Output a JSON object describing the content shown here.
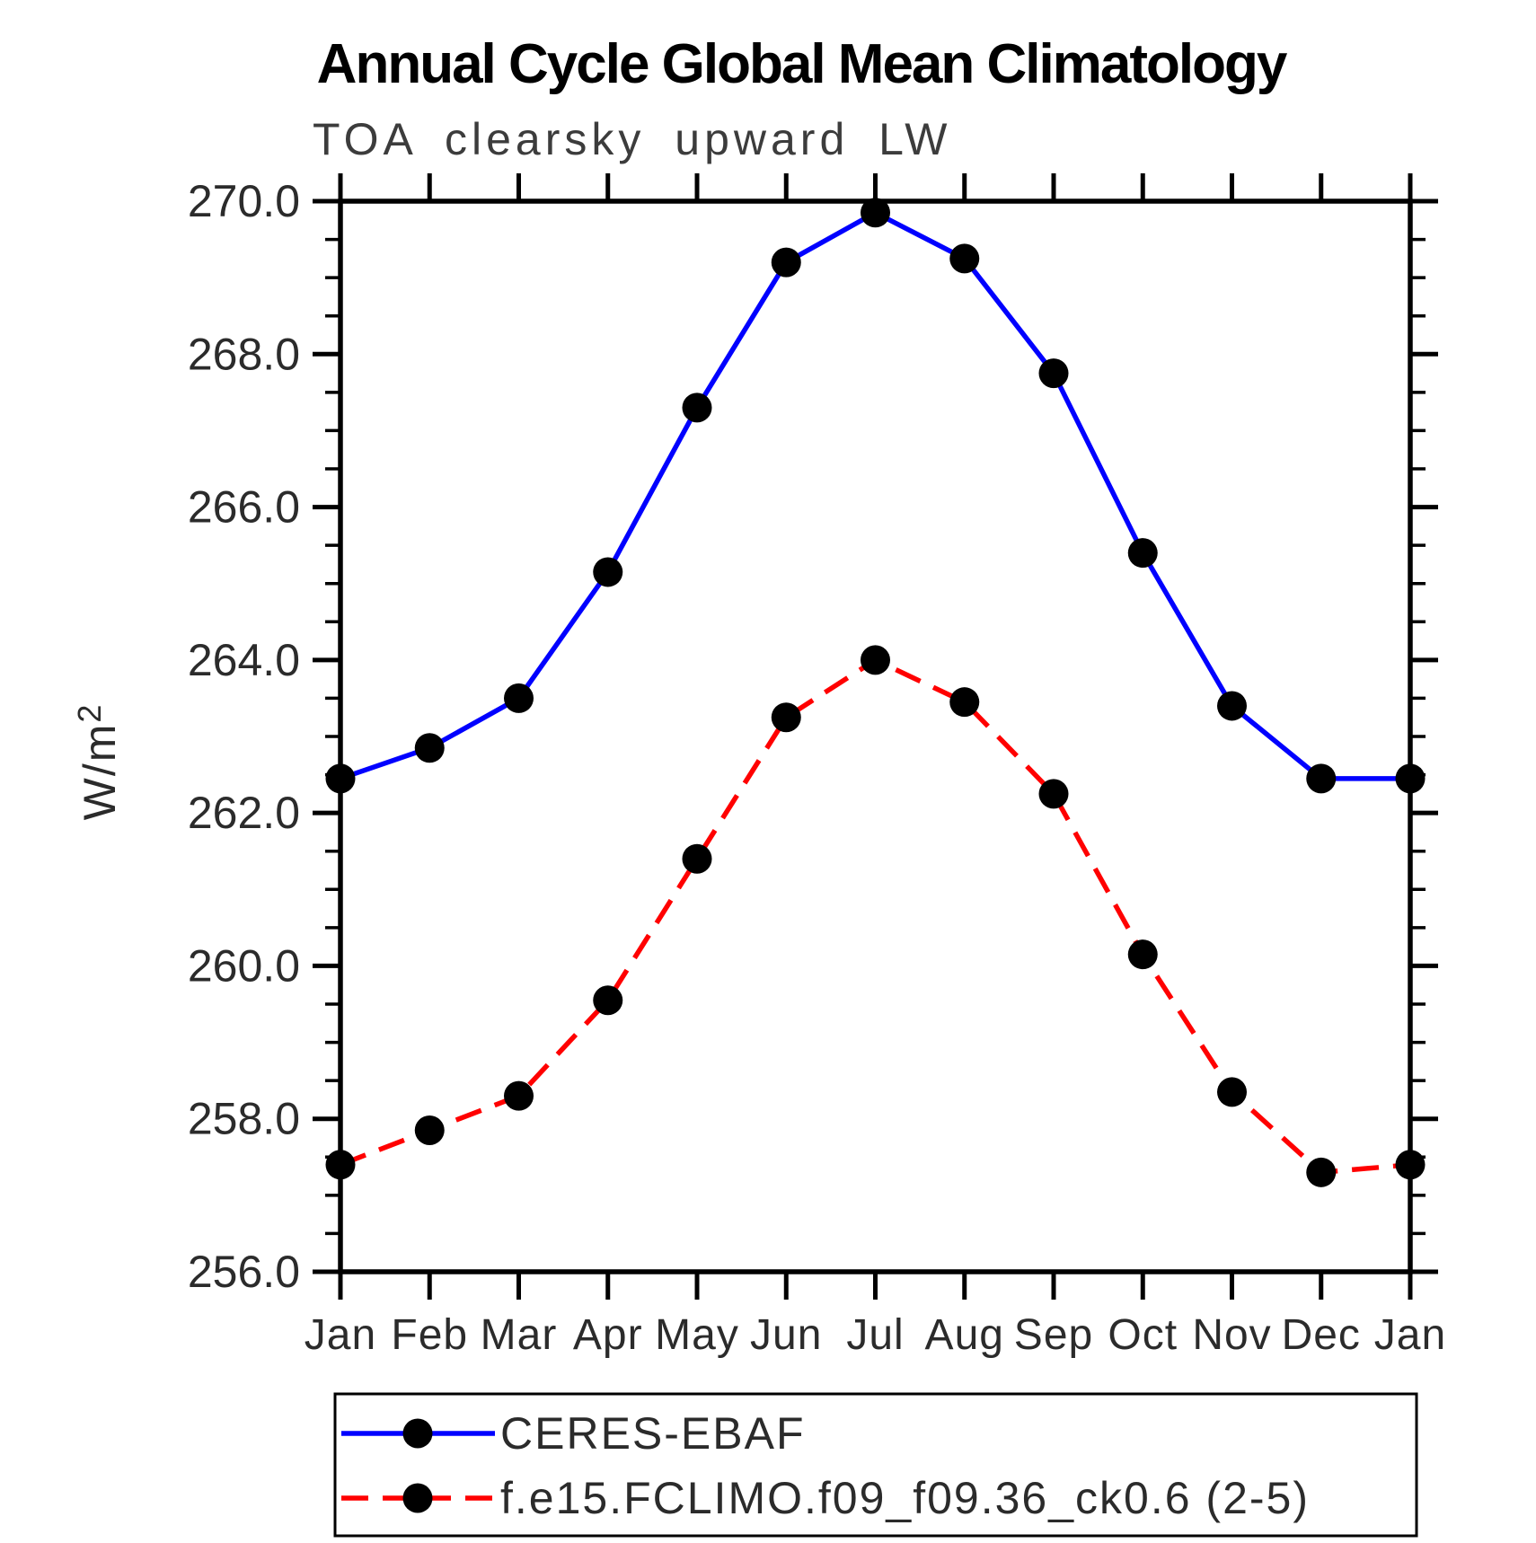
{
  "page": {
    "background": "#ffffff"
  },
  "chart_data": {
    "type": "line",
    "title": "Annual Cycle Global Mean Climatology",
    "subtitle": "TOA clearsky upward LW",
    "ylabel_base": "W/m",
    "ylabel_exponent": "2",
    "categories": [
      "Jan",
      "Feb",
      "Mar",
      "Apr",
      "May",
      "Jun",
      "Jul",
      "Aug",
      "Sep",
      "Oct",
      "Nov",
      "Dec",
      "Jan"
    ],
    "ylim": [
      256.0,
      270.0
    ],
    "ytick_step_major": 2.0,
    "ytick_step_minor": 0.5,
    "yticks": [
      {
        "value": 256.0,
        "label": "256.0"
      },
      {
        "value": 258.0,
        "label": "258.0"
      },
      {
        "value": 260.0,
        "label": "260.0"
      },
      {
        "value": 262.0,
        "label": "262.0"
      },
      {
        "value": 264.0,
        "label": "264.0"
      },
      {
        "value": 266.0,
        "label": "266.0"
      },
      {
        "value": 268.0,
        "label": "268.0"
      },
      {
        "value": 270.0,
        "label": "270.0"
      }
    ],
    "grid": false,
    "legend_position": "bottom-left",
    "axis_color": "#000000",
    "marker_shape": "circle",
    "series": [
      {
        "name": "CERES-EBAF",
        "color": "#0000ff",
        "line_style": "solid",
        "marker_color": "#000000",
        "values": [
          262.45,
          262.85,
          263.5,
          265.15,
          267.3,
          269.2,
          269.85,
          269.25,
          267.75,
          265.4,
          263.4,
          262.45,
          262.45
        ]
      },
      {
        "name": "f.e15.FCLIMO.f09_f09.36_ck0.6 (2-5)",
        "color": "#ff0000",
        "line_style": "dashed",
        "marker_color": "#000000",
        "values": [
          257.4,
          257.85,
          258.3,
          259.55,
          261.4,
          263.25,
          264.0,
          263.45,
          262.25,
          260.15,
          258.35,
          257.3,
          257.4
        ]
      }
    ]
  }
}
